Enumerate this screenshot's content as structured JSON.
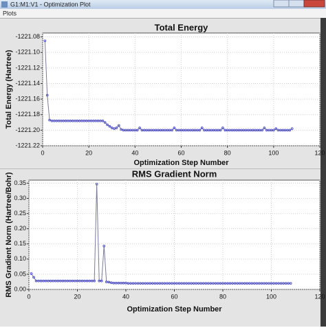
{
  "window": {
    "title": "G1:M1:V1 - Optimization Plot",
    "menu": [
      "Plots"
    ]
  },
  "chart_data": [
    {
      "type": "line",
      "title": "Total Energy",
      "x_label": "Optimization Step Number",
      "y_label": "Total Energy (Hartree)",
      "x": [
        1,
        2,
        3,
        4,
        5,
        6,
        7,
        8,
        9,
        10,
        11,
        12,
        13,
        14,
        15,
        16,
        17,
        18,
        19,
        20,
        21,
        22,
        23,
        24,
        25,
        26,
        27,
        28,
        29,
        30,
        31,
        32,
        33,
        34,
        35,
        36,
        37,
        38,
        39,
        40,
        41,
        42,
        43,
        44,
        45,
        46,
        47,
        48,
        49,
        50,
        51,
        52,
        53,
        54,
        55,
        56,
        57,
        58,
        59,
        60,
        61,
        62,
        63,
        64,
        65,
        66,
        67,
        68,
        69,
        70,
        71,
        72,
        73,
        74,
        75,
        76,
        77,
        78,
        79,
        80,
        81,
        82,
        83,
        84,
        85,
        86,
        87,
        88,
        89,
        90,
        91,
        92,
        93,
        94,
        95,
        96,
        97,
        98,
        99,
        100,
        101,
        102,
        103,
        104,
        105,
        106,
        107,
        108
      ],
      "series": [
        {
          "name": "Total Energy",
          "color": "#4f4fd0",
          "values": [
            -1221.085,
            -1221.155,
            -1221.187,
            -1221.188,
            -1221.188,
            -1221.188,
            -1221.188,
            -1221.188,
            -1221.188,
            -1221.188,
            -1221.188,
            -1221.188,
            -1221.188,
            -1221.188,
            -1221.188,
            -1221.188,
            -1221.188,
            -1221.188,
            -1221.188,
            -1221.188,
            -1221.188,
            -1221.188,
            -1221.188,
            -1221.188,
            -1221.188,
            -1221.188,
            -1221.19,
            -1221.193,
            -1221.195,
            -1221.197,
            -1221.198,
            -1221.197,
            -1221.194,
            -1221.199,
            -1221.2,
            -1221.2,
            -1221.2,
            -1221.2,
            -1221.2,
            -1221.2,
            -1221.2,
            -1221.197,
            -1221.2,
            -1221.2,
            -1221.2,
            -1221.2,
            -1221.2,
            -1221.2,
            -1221.2,
            -1221.2,
            -1221.2,
            -1221.2,
            -1221.2,
            -1221.2,
            -1221.2,
            -1221.2,
            -1221.197,
            -1221.2,
            -1221.2,
            -1221.2,
            -1221.2,
            -1221.2,
            -1221.2,
            -1221.2,
            -1221.2,
            -1221.2,
            -1221.2,
            -1221.2,
            -1221.197,
            -1221.2,
            -1221.2,
            -1221.2,
            -1221.2,
            -1221.2,
            -1221.2,
            -1221.2,
            -1221.2,
            -1221.197,
            -1221.2,
            -1221.2,
            -1221.2,
            -1221.2,
            -1221.2,
            -1221.2,
            -1221.2,
            -1221.2,
            -1221.2,
            -1221.2,
            -1221.2,
            -1221.2,
            -1221.2,
            -1221.2,
            -1221.2,
            -1221.2,
            -1221.2,
            -1221.197,
            -1221.2,
            -1221.2,
            -1221.2,
            -1221.2,
            -1221.198,
            -1221.2,
            -1221.2,
            -1221.2,
            -1221.2,
            -1221.2,
            -1221.2,
            -1221.198
          ]
        }
      ],
      "xlim": [
        0,
        120
      ],
      "xticks": [
        0,
        20,
        40,
        60,
        80,
        100,
        120
      ],
      "ylim": [
        -1221.22,
        -1221.075
      ],
      "yticks": [
        -1221.22,
        {
          "value": -1221.2,
          "label": "-1221.20"
        },
        -1221.18,
        -1221.16,
        -1221.14,
        -1221.12,
        {
          "value": -1221.1,
          "label": "-1221.10"
        },
        -1221.08
      ],
      "grid": true
    },
    {
      "type": "line",
      "title": "RMS Gradient Norm",
      "x_label": "Optimization Step Number",
      "y_label": "RMS Gradient Norm (Hartree/Bohr)",
      "x": [
        1,
        2,
        3,
        4,
        5,
        6,
        7,
        8,
        9,
        10,
        11,
        12,
        13,
        14,
        15,
        16,
        17,
        18,
        19,
        20,
        21,
        22,
        23,
        24,
        25,
        26,
        27,
        28,
        29,
        30,
        31,
        32,
        33,
        34,
        35,
        36,
        37,
        38,
        39,
        40,
        41,
        42,
        43,
        44,
        45,
        46,
        47,
        48,
        49,
        50,
        51,
        52,
        53,
        54,
        55,
        56,
        57,
        58,
        59,
        60,
        61,
        62,
        63,
        64,
        65,
        66,
        67,
        68,
        69,
        70,
        71,
        72,
        73,
        74,
        75,
        76,
        77,
        78,
        79,
        80,
        81,
        82,
        83,
        84,
        85,
        86,
        87,
        88,
        89,
        90,
        91,
        92,
        93,
        94,
        95,
        96,
        97,
        98,
        99,
        100,
        101,
        102,
        103,
        104,
        105,
        106,
        107,
        108
      ],
      "series": [
        {
          "name": "RMS Gradient Norm",
          "color": "#4f4fd0",
          "values": [
            0.052,
            0.04,
            0.028,
            0.028,
            0.028,
            0.028,
            0.028,
            0.028,
            0.028,
            0.028,
            0.028,
            0.028,
            0.028,
            0.028,
            0.028,
            0.028,
            0.028,
            0.028,
            0.028,
            0.028,
            0.028,
            0.028,
            0.028,
            0.028,
            0.028,
            0.028,
            0.028,
            0.347,
            0.028,
            0.028,
            0.143,
            0.025,
            0.024,
            0.022,
            0.021,
            0.021,
            0.021,
            0.021,
            0.021,
            0.021,
            0.02,
            0.02,
            0.02,
            0.02,
            0.02,
            0.02,
            0.02,
            0.02,
            0.02,
            0.02,
            0.02,
            0.02,
            0.02,
            0.02,
            0.02,
            0.02,
            0.02,
            0.02,
            0.02,
            0.02,
            0.02,
            0.02,
            0.02,
            0.02,
            0.02,
            0.02,
            0.02,
            0.02,
            0.02,
            0.02,
            0.02,
            0.02,
            0.02,
            0.02,
            0.02,
            0.02,
            0.02,
            0.02,
            0.02,
            0.02,
            0.02,
            0.02,
            0.02,
            0.02,
            0.02,
            0.02,
            0.02,
            0.02,
            0.02,
            0.02,
            0.02,
            0.02,
            0.02,
            0.02,
            0.02,
            0.02,
            0.02,
            0.02,
            0.02,
            0.02,
            0.02,
            0.02,
            0.02,
            0.02,
            0.02,
            0.02,
            0.02,
            0.02
          ]
        }
      ],
      "xlim": [
        0,
        120
      ],
      "xticks": [
        0,
        20,
        40,
        60,
        80,
        100,
        120
      ],
      "ylim": [
        0,
        0.36
      ],
      "yticks": [
        {
          "value": 0,
          "label": "0.00"
        },
        0.05,
        {
          "value": 0.1,
          "label": "0.10"
        },
        0.15,
        {
          "value": 0.2,
          "label": "0.20"
        },
        0.25,
        {
          "value": 0.3,
          "label": "0.30"
        },
        0.35
      ],
      "grid": true
    }
  ]
}
